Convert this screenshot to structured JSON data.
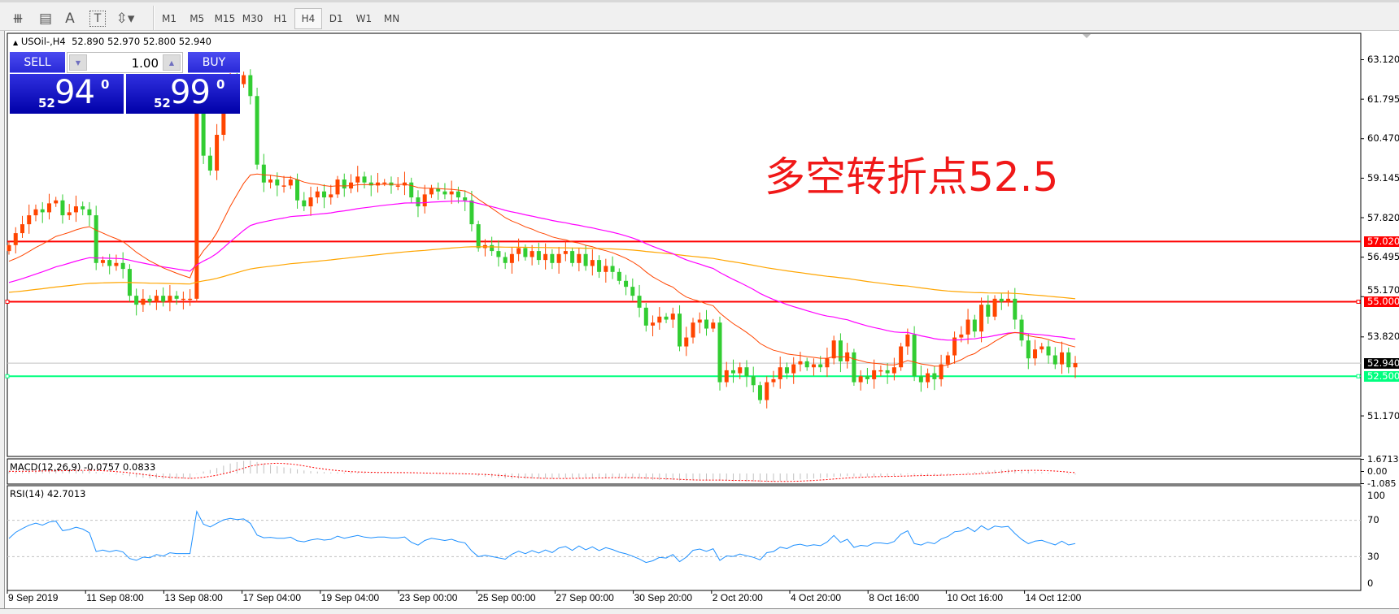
{
  "toolbar": {
    "tools": [
      {
        "name": "fibonacci-expansion-icon",
        "glyph": "⧻"
      },
      {
        "name": "fibonacci-fan-icon",
        "glyph": "▤"
      },
      {
        "name": "text-icon",
        "glyph": "A"
      },
      {
        "name": "text-label-icon",
        "glyph": "T"
      },
      {
        "name": "arrows-icon",
        "glyph": "⇳▾"
      }
    ],
    "timeframes": [
      "M1",
      "M5",
      "M15",
      "M30",
      "H1",
      "H4",
      "D1",
      "W1",
      "MN"
    ],
    "active_timeframe": "H4"
  },
  "chart": {
    "symbol": "USOil-,H4",
    "ohlc": "52.890 52.970 52.800 52.940",
    "annotation": "多空转折点52.5",
    "annotation_color": "#f01818"
  },
  "trade_panel": {
    "sell_label": "SELL",
    "buy_label": "BUY",
    "lot": "1.00",
    "sell_price": {
      "prefix": "52",
      "main": "94",
      "sup": "0"
    },
    "buy_price": {
      "prefix": "52",
      "main": "99",
      "sup": "0"
    }
  },
  "price_axis": {
    "ticks": [
      "63.120",
      "61.795",
      "60.470",
      "59.145",
      "57.820",
      "56.495",
      "55.170",
      "53.820",
      "51.170"
    ],
    "levels": [
      {
        "value": "57.020",
        "color": "#ff0000",
        "kind": "resistance-line"
      },
      {
        "value": "55.000",
        "color": "#ff0000",
        "kind": "resistance-line"
      },
      {
        "value": "52.940",
        "color": "#000000",
        "kind": "bid-line"
      },
      {
        "value": "52.500",
        "color": "#00ff7f",
        "kind": "support-line"
      }
    ]
  },
  "macd": {
    "label": "MACD(12,26,9) -0.0757 0.0833",
    "axis": [
      "1.6713",
      "0.00",
      "-1.085"
    ]
  },
  "rsi": {
    "label": "RSI(14) 42.7013",
    "axis": [
      "100",
      "70",
      "30",
      "0"
    ]
  },
  "time_axis": [
    "9 Sep 2019",
    "11 Sep 08:00",
    "13 Sep 08:00",
    "17 Sep 04:00",
    "19 Sep 04:00",
    "23 Sep 00:00",
    "25 Sep 00:00",
    "27 Sep 00:00",
    "30 Sep 20:00",
    "2 Oct 20:00",
    "4 Oct 20:00",
    "8 Oct 16:00",
    "10 Oct 16:00",
    "14 Oct 12:00"
  ],
  "chart_data": {
    "type": "candlestick",
    "ylim": [
      50.7,
      63.6
    ],
    "up_color": "#ff4500",
    "down_color": "#32cd32",
    "close": [
      56.9,
      57.3,
      57.6,
      57.9,
      58.1,
      58.0,
      58.3,
      58.4,
      57.9,
      58.0,
      58.2,
      58.1,
      57.9,
      56.3,
      56.4,
      56.2,
      56.3,
      56.1,
      55.2,
      54.9,
      55.1,
      55.0,
      55.2,
      55.0,
      55.2,
      55.1,
      55.1,
      55.1,
      61.8,
      59.9,
      59.4,
      60.6,
      61.9,
      62.5,
      62.3,
      62.6,
      61.9,
      59.6,
      59.0,
      59.1,
      58.9,
      58.9,
      59.1,
      58.4,
      58.2,
      58.5,
      58.7,
      58.5,
      58.6,
      59.1,
      58.8,
      59.0,
      59.2,
      59.0,
      58.9,
      59.0,
      59.0,
      58.9,
      58.9,
      59.0,
      58.5,
      58.2,
      58.6,
      58.8,
      58.7,
      58.6,
      58.7,
      58.5,
      58.4,
      57.6,
      56.8,
      56.9,
      56.7,
      56.5,
      56.3,
      56.6,
      56.8,
      56.5,
      56.7,
      56.4,
      56.6,
      56.3,
      56.6,
      56.7,
      56.3,
      56.6,
      56.2,
      56.4,
      56.0,
      56.2,
      56.0,
      55.7,
      55.5,
      55.2,
      54.8,
      54.2,
      54.3,
      54.5,
      54.4,
      54.6,
      53.5,
      53.8,
      54.3,
      54.4,
      54.1,
      54.3,
      52.3,
      52.7,
      52.6,
      52.8,
      52.5,
      52.2,
      51.7,
      52.3,
      52.4,
      52.8,
      52.6,
      52.9,
      53.0,
      52.8,
      52.9,
      52.8,
      53.1,
      53.7,
      53.0,
      53.3,
      52.3,
      52.5,
      52.4,
      52.7,
      52.7,
      52.6,
      52.8,
      53.5,
      53.9,
      52.5,
      52.3,
      52.6,
      52.4,
      52.9,
      53.2,
      53.8,
      53.9,
      54.4,
      54.0,
      54.9,
      54.5,
      55.1,
      55.0,
      55.1,
      54.4,
      53.7,
      53.1,
      53.4,
      53.5,
      53.2,
      52.9,
      53.3,
      52.8,
      52.94
    ]
  }
}
